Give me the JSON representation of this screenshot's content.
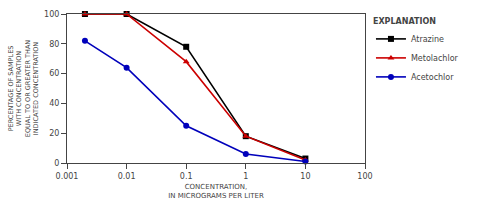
{
  "chart_data": {
    "type": "line",
    "xlabel": "CONCENTRATION,\nIN MICROGRAMS PER LITER",
    "ylabel": "PERCENTAGE OF SAMPLES\nWITH CONCENTRATION\nEQUAL TO OR GREATER THAN\nINDICATED CONCENTRATION",
    "legend_title": "EXPLANATION",
    "legend": "right",
    "log": "x",
    "grid": false,
    "x": [
      0.002,
      0.01,
      0.1,
      1.0,
      10.0
    ],
    "xlim": [
      0.001,
      100
    ],
    "xticks": [
      0.001,
      0.01,
      0.1,
      1,
      10,
      100
    ],
    "ylim": [
      0,
      100
    ],
    "yticks": [
      0,
      20,
      40,
      60,
      80,
      100
    ],
    "series": [
      {
        "name": "Atrazine",
        "color": "#000000",
        "marker": "square",
        "values": [
          100,
          100,
          78,
          18,
          3
        ]
      },
      {
        "name": "Metolachlor",
        "color": "#cc0000",
        "marker": "triangle",
        "values": [
          100,
          100,
          68,
          18,
          2
        ]
      },
      {
        "name": "Acetochlor",
        "color": "#0000bb",
        "marker": "circle",
        "values": [
          82,
          64,
          25,
          6,
          1
        ]
      }
    ]
  }
}
